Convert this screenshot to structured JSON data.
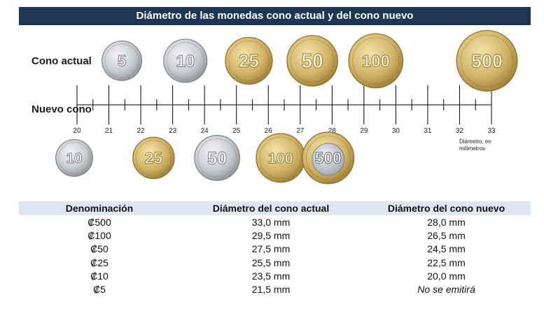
{
  "title": "Diámetro de las monedas cono actual y del cono nuevo",
  "row_labels": {
    "current": "Cono actual",
    "new": "Nuevo cono"
  },
  "units_note": "Diámetro, en milímetros",
  "scale": {
    "min": 20,
    "max": 33,
    "ticks": [
      "20",
      "21",
      "22",
      "23",
      "24",
      "25",
      "26",
      "27",
      "28",
      "29",
      "30",
      "31",
      "32",
      "33"
    ]
  },
  "coins_current": [
    {
      "label": "5",
      "diameter_mm": 21.5,
      "type": "silver"
    },
    {
      "label": "10",
      "diameter_mm": 23.5,
      "type": "silver"
    },
    {
      "label": "25",
      "diameter_mm": 25.5,
      "type": "gold"
    },
    {
      "label": "50",
      "diameter_mm": 27.5,
      "type": "gold"
    },
    {
      "label": "100",
      "diameter_mm": 29.5,
      "type": "gold"
    },
    {
      "label": "500",
      "diameter_mm": 33.0,
      "type": "gold"
    }
  ],
  "coins_new": [
    {
      "label": "10",
      "diameter_mm": 20.0,
      "type": "silver"
    },
    {
      "label": "25",
      "diameter_mm": 22.5,
      "type": "gold"
    },
    {
      "label": "50",
      "diameter_mm": 24.5,
      "type": "silver"
    },
    {
      "label": "100",
      "diameter_mm": 26.5,
      "type": "gold"
    },
    {
      "label": "500",
      "diameter_mm": 28.0,
      "type": "bimetal"
    }
  ],
  "table": {
    "headers": [
      "Denominación",
      "Diámetro del cono actual",
      "Diámetro del cono nuevo"
    ],
    "rows": [
      [
        "₡500",
        "33,0 mm",
        "28,0 mm"
      ],
      [
        "₡100",
        "29,5 mm",
        "26,5 mm"
      ],
      [
        "₡50",
        "27,5 mm",
        "24,5 mm"
      ],
      [
        "₡25",
        "25,5 mm",
        "22,5 mm"
      ],
      [
        "₡10",
        "23,5 mm",
        "20,0 mm"
      ],
      [
        "₡5",
        "21,5 mm",
        "No se emitirá"
      ]
    ]
  },
  "colors": {
    "banner": "#1e3553",
    "table_header": "#dde6f1",
    "silver": "#c9ccd0",
    "gold": "#d2b469"
  }
}
